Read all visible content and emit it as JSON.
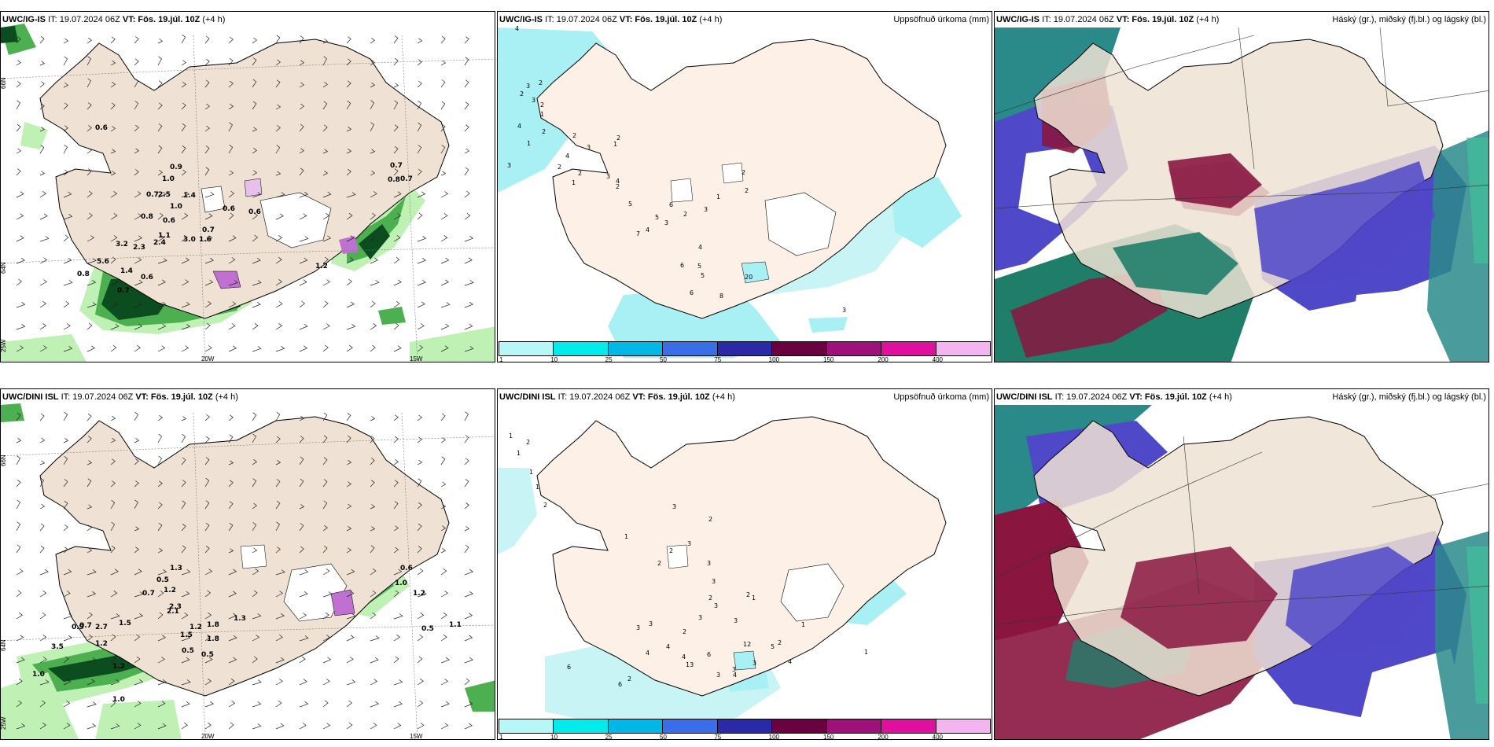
{
  "rows": [
    {
      "model": "UWC/IG-IS",
      "it": "IT: 19.07.2024 06Z",
      "vt_label": "VT:",
      "vt_value": "Fös. 19.júl. 10Z",
      "lead": "(+4 h)",
      "wind_labels": [
        "0.6",
        "0.9",
        "1.0",
        "0.7",
        "2.5",
        "1.4",
        "1.0",
        "0.8",
        "0.6",
        "0.6",
        "0.6",
        "0.7",
        "3.2",
        "2.3",
        "2.4",
        "1.1",
        "3.0",
        "0.7",
        "1.6",
        "5.6",
        "1.4",
        "0.6",
        "0.8",
        "0.7",
        "0.8",
        "0.7",
        "1.2"
      ],
      "precip_labels": [
        "4",
        "2",
        "3",
        "2",
        "3",
        "2",
        "1",
        "2",
        "4",
        "1",
        "2",
        "3",
        "1",
        "2",
        "4",
        "2",
        "3",
        "1",
        "3",
        "2",
        "2",
        "4",
        "5",
        "7",
        "4",
        "5",
        "6",
        "3",
        "2",
        "3",
        "2",
        "1",
        "2",
        "4",
        "5",
        "5",
        "6",
        "6",
        "8",
        "20",
        "3"
      ],
      "axes": {
        "lat_top": "66N",
        "lat_mid": "64N",
        "lat_bot": "25W",
        "lon1": "20W",
        "lon2": "15W",
        "lat_mid2": "65N"
      }
    },
    {
      "model": "UWC/DINI ISL",
      "it": "IT: 19.07.2024 06Z",
      "vt_label": "VT:",
      "vt_value": "Fös. 19.júl. 10Z",
      "lead": "(+4 h)",
      "wind_labels": [
        "1.3",
        "0.5",
        "1.2",
        "0.7",
        "2.1",
        "2.3",
        "1.8",
        "1.2",
        "0.9",
        "0.7",
        "1.5",
        "3.5",
        "1.2",
        "1.2",
        "0.5",
        "0.5",
        "1.5",
        "1.8",
        "0.6",
        "1.0",
        "1.2",
        "0.5",
        "1.1",
        "2.7",
        "1.0",
        "1.0",
        "1.3"
      ],
      "precip_labels": [
        "1",
        "1",
        "2",
        "1",
        "1",
        "2",
        "3",
        "2",
        "1",
        "2",
        "3",
        "2",
        "3",
        "1",
        "2",
        "3",
        "3",
        "2",
        "13",
        "3",
        "3",
        "2",
        "1",
        "2",
        "3",
        "6",
        "4",
        "4",
        "4",
        "3",
        "3",
        "5",
        "4",
        "4",
        "3",
        "12",
        "6",
        "6",
        "2",
        "3",
        "1"
      ],
      "axes": {
        "lat_top": "66N",
        "lat_mid": "64N",
        "lat_bot": "25W",
        "lon1": "20W",
        "lon2": "15W",
        "lat_mid2": "65N"
      }
    }
  ],
  "precip_title": "Uppsöfnuð úrkoma (mm)",
  "cloud_title": "Háský (gr.), miðský (fj.bl.) og lágský (bl.)",
  "legend": {
    "colors": [
      "#b8f7f7",
      "#00ecec",
      "#00b8e6",
      "#3a6ee8",
      "#2a2aa8",
      "#6b0040",
      "#a0107a",
      "#e0109e",
      "#f4b4f0"
    ],
    "ticks": [
      "1",
      "10",
      "25",
      "50",
      "75",
      "100",
      "150",
      "200",
      "400"
    ]
  },
  "colors": {
    "land": "#efe2d4",
    "land_precip": "#fdf0e6",
    "precip_cyan": "#a8f0f4",
    "wind_green_light": "#bff0b4",
    "wind_green_mid": "#4caf50",
    "wind_green_dark": "#0b4d1f",
    "cloud_high": "#1f7e6a",
    "cloud_mid": "#4f48c8",
    "cloud_low": "#8a1640",
    "teal": "#2a8a8a"
  }
}
